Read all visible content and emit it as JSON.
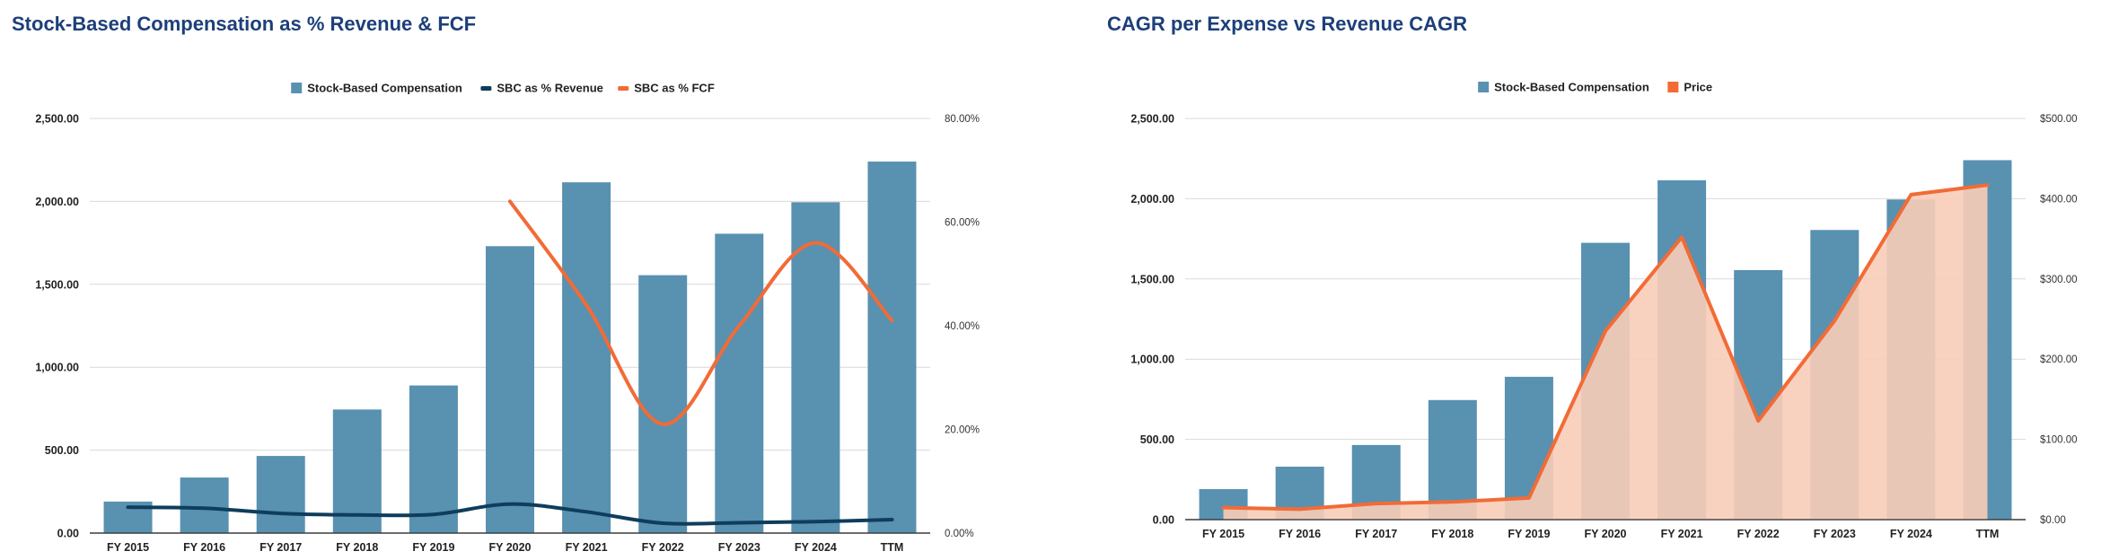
{
  "charts": [
    {
      "id": "left",
      "title": "Stock-Based Compensation as % Revenue & FCF",
      "legend": [
        {
          "label": "Stock-Based Compensation",
          "kind": "bar",
          "color": "#5991b0"
        },
        {
          "label": "SBC as % Revenue",
          "kind": "line",
          "color": "#0f3d5c"
        },
        {
          "label": "SBC as % FCF",
          "kind": "line",
          "color": "#f26b36"
        }
      ],
      "left_ticks": [
        "0.00",
        "500.00",
        "1,000.00",
        "1,500.00",
        "2,000.00",
        "2,500.00"
      ],
      "right_ticks": [
        "0.00%",
        "20.00%",
        "40.00%",
        "60.00%",
        "80.00%"
      ]
    },
    {
      "id": "right",
      "title": "CAGR per Expense vs Revenue CAGR",
      "legend": [
        {
          "label": "Stock-Based Compensation",
          "kind": "bar",
          "color": "#5991b0"
        },
        {
          "label": "Price",
          "kind": "area",
          "color": "#f26b36"
        }
      ],
      "left_ticks": [
        "0.00",
        "500.00",
        "1,000.00",
        "1,500.00",
        "2,000.00",
        "2,500.00"
      ],
      "right_ticks": [
        "$0.00",
        "$100.00",
        "$200.00",
        "$300.00",
        "$400.00",
        "$500.00"
      ]
    }
  ],
  "chart_data": [
    {
      "type": "bar",
      "title": "Stock-Based Compensation as % Revenue & FCF",
      "categories": [
        "FY 2015",
        "FY 2016",
        "FY 2017",
        "FY 2018",
        "FY 2019",
        "FY 2020",
        "FY 2021",
        "FY 2022",
        "FY 2023",
        "FY 2024",
        "TTM"
      ],
      "ylim": [
        0,
        2500
      ],
      "y2lim": [
        0,
        80
      ],
      "series": [
        {
          "name": "Stock-Based Compensation",
          "type": "bar",
          "axis": "left",
          "color": "#5991b0",
          "values": [
            190,
            335,
            465,
            745,
            890,
            1730,
            2115,
            1555,
            1805,
            1995,
            2240
          ]
        },
        {
          "name": "SBC as % Revenue",
          "type": "line",
          "axis": "right",
          "color": "#0f3d5c",
          "values": [
            5.0,
            4.8,
            3.8,
            3.5,
            3.6,
            5.6,
            4.1,
            1.9,
            2.0,
            2.2,
            2.6
          ]
        },
        {
          "name": "SBC as % FCF",
          "type": "line",
          "axis": "right",
          "color": "#f26b36",
          "values": [
            null,
            null,
            null,
            null,
            null,
            64,
            44,
            21,
            40,
            56,
            41
          ]
        }
      ]
    },
    {
      "type": "bar",
      "title": "CAGR per Expense vs Revenue CAGR",
      "categories": [
        "FY 2015",
        "FY 2016",
        "FY 2017",
        "FY 2018",
        "FY 2019",
        "FY 2020",
        "FY 2021",
        "FY 2022",
        "FY 2023",
        "FY 2024",
        "TTM"
      ],
      "ylim": [
        0,
        2500
      ],
      "y2lim": [
        0,
        500
      ],
      "series": [
        {
          "name": "Stock-Based Compensation",
          "type": "bar",
          "axis": "left",
          "color": "#5991b0",
          "values": [
            190,
            330,
            465,
            745,
            890,
            1725,
            2115,
            1555,
            1805,
            1995,
            2240
          ]
        },
        {
          "name": "Price",
          "type": "area",
          "axis": "right",
          "color": "#f26b36",
          "values": [
            15,
            13,
            20,
            22,
            27,
            235,
            352,
            123,
            248,
            405,
            417
          ]
        }
      ]
    }
  ]
}
